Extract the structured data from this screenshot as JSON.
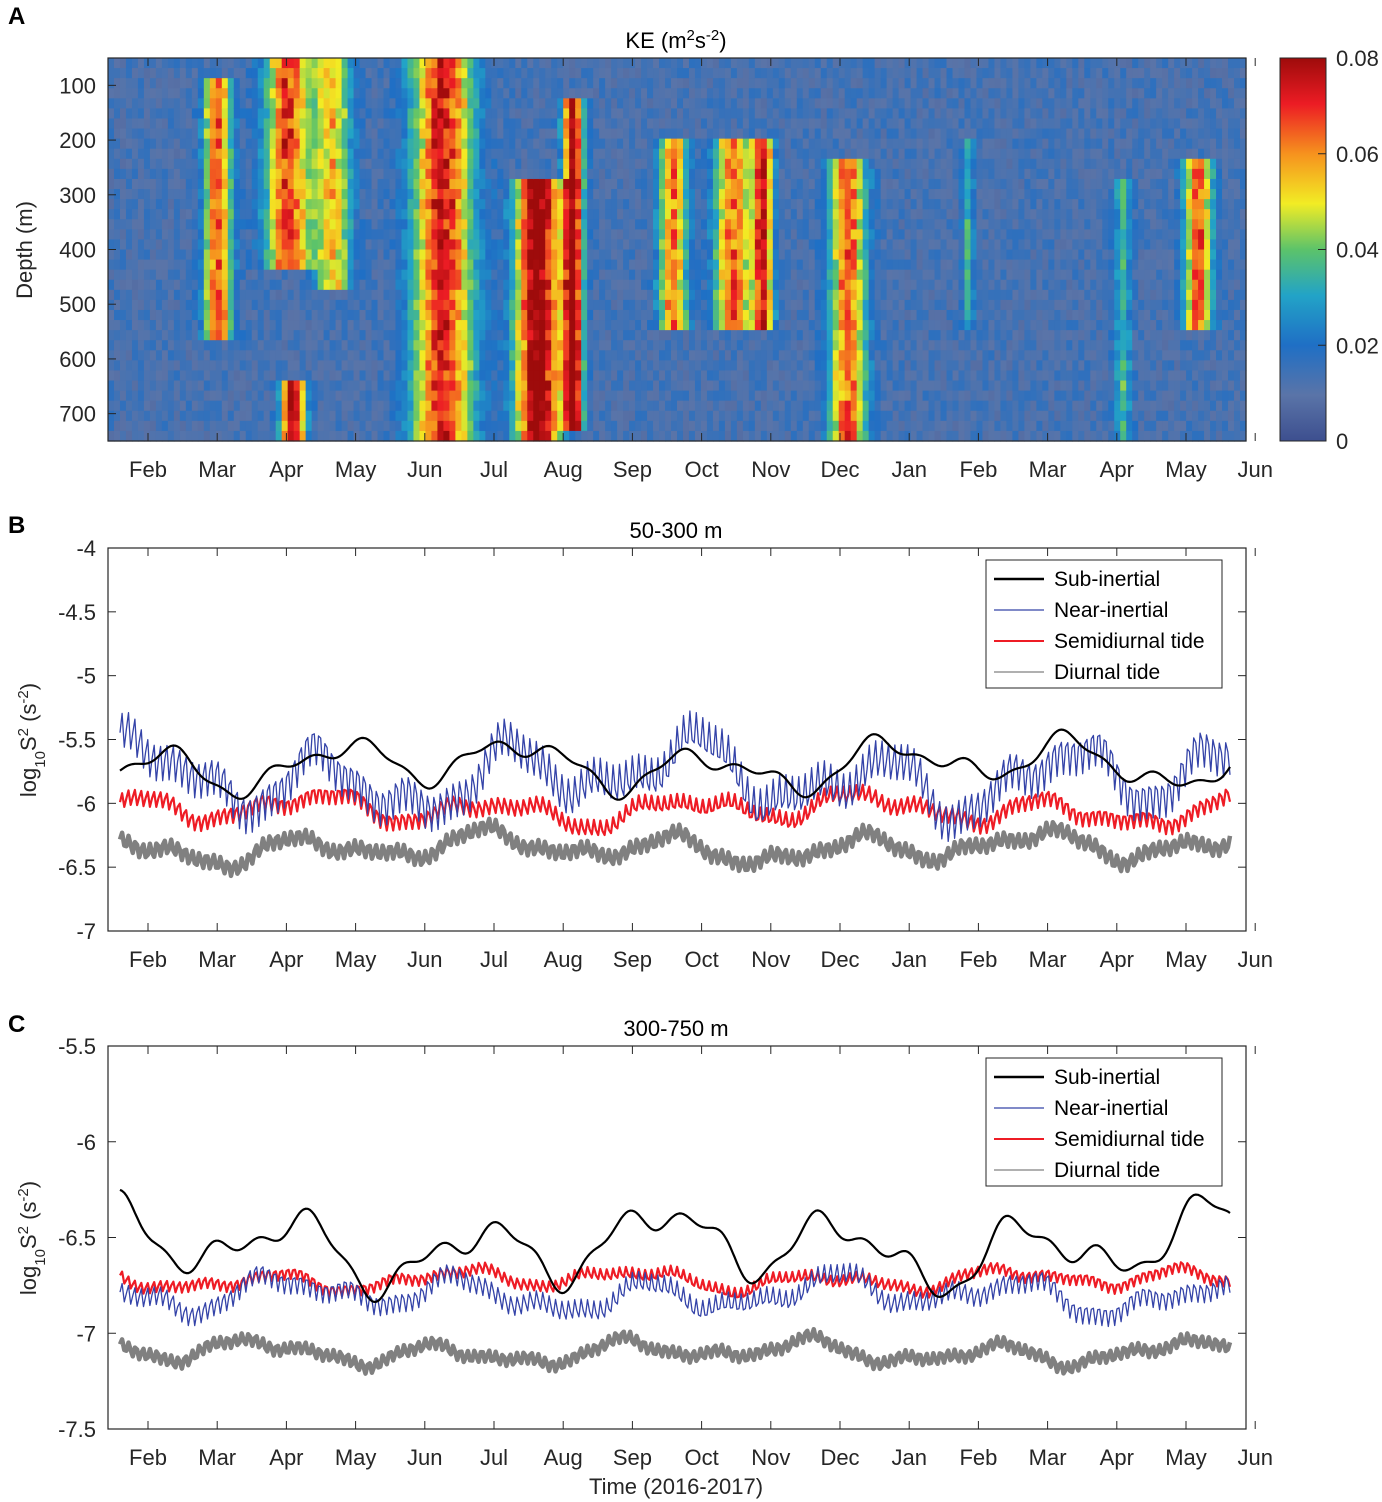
{
  "chart_data": [
    {
      "panel_label": "A",
      "type": "heatmap",
      "title": "KE (m",
      "title_sup1": "2",
      "title_mid": "s",
      "title_sup2": "-2",
      "title_end": ")",
      "ylabel": "Depth (m)",
      "ylim": [
        750,
        50
      ],
      "yticks": [
        "100",
        "200",
        "300",
        "400",
        "500",
        "600",
        "700"
      ],
      "xticks": [
        "Feb",
        "Mar",
        "Apr",
        "May",
        "Jun",
        "Jul",
        "Aug",
        "Sep",
        "Oct",
        "Nov",
        "Dec",
        "Jan",
        "Feb",
        "Mar",
        "Apr",
        "May",
        "Jun"
      ],
      "colorbar": {
        "min": 0,
        "max": 0.08,
        "ticks": [
          "0.08",
          "0.06",
          "0.04",
          "0.02",
          "0"
        ]
      },
      "colors": {
        "low": "#3a5a9a",
        "high": "#9e0b0b"
      }
    },
    {
      "panel_label": "B",
      "type": "line",
      "title": "50-300 m",
      "ylabel_main": "log",
      "ylabel_sub": "10",
      "ylabel_mid": "S",
      "ylabel_sup": "2",
      "ylabel_unit": " (s",
      "ylabel_unit_sup": "-2",
      "ylabel_end": ")",
      "ylim": [
        -7,
        -4
      ],
      "yticks": [
        "-4",
        "-4.5",
        "-5",
        "-5.5",
        "-6",
        "-6.5",
        "-7"
      ],
      "xticks": [
        "Feb",
        "Mar",
        "Apr",
        "May",
        "Jun",
        "Jul",
        "Aug",
        "Sep",
        "Oct",
        "Nov",
        "Dec",
        "Jan",
        "Feb",
        "Mar",
        "Apr",
        "May",
        "Jun"
      ],
      "legend": [
        "Sub-inertial",
        "Near-inertial",
        "Semidiurnal tide",
        "Diurnal tide"
      ],
      "series": [
        {
          "name": "Sub-inertial",
          "color": "#000000",
          "base": -5.7,
          "amp": 0.25,
          "seed": 1
        },
        {
          "name": "Near-inertial",
          "color": "#3443a8",
          "base": -5.8,
          "amp": 0.35,
          "seed": 2
        },
        {
          "name": "Semidiurnal tide",
          "color": "#ee1c25",
          "base": -6.05,
          "amp": 0.15,
          "seed": 3
        },
        {
          "name": "Diurnal tide",
          "color": "#808080",
          "base": -6.35,
          "amp": 0.15,
          "seed": 4
        }
      ]
    },
    {
      "panel_label": "C",
      "type": "line",
      "title": "300-750 m",
      "xlabel": "Time (2016-2017)",
      "ylabel_main": "log",
      "ylabel_sub": "10",
      "ylabel_mid": "S",
      "ylabel_sup": "2",
      "ylabel_unit": " (s",
      "ylabel_unit_sup": "-2",
      "ylabel_end": ")",
      "ylim": [
        -7.5,
        -5.5
      ],
      "yticks": [
        "-5.5",
        "-6",
        "-6.5",
        "-7",
        "-7.5"
      ],
      "xticks": [
        "Feb",
        "Mar",
        "Apr",
        "May",
        "Jun",
        "Jul",
        "Aug",
        "Sep",
        "Oct",
        "Nov",
        "Dec",
        "Jan",
        "Feb",
        "Mar",
        "Apr",
        "May",
        "Jun"
      ],
      "legend": [
        "Sub-inertial",
        "Near-inertial",
        "Semidiurnal tide",
        "Diurnal tide"
      ],
      "series": [
        {
          "name": "Sub-inertial",
          "color": "#000000",
          "base": -6.55,
          "amp": 0.25,
          "seed": 5
        },
        {
          "name": "Near-inertial",
          "color": "#3443a8",
          "base": -6.8,
          "amp": 0.12,
          "seed": 6
        },
        {
          "name": "Semidiurnal tide",
          "color": "#ee1c25",
          "base": -6.72,
          "amp": 0.07,
          "seed": 7
        },
        {
          "name": "Diurnal tide",
          "color": "#808080",
          "base": -7.1,
          "amp": 0.08,
          "seed": 8
        }
      ]
    }
  ]
}
